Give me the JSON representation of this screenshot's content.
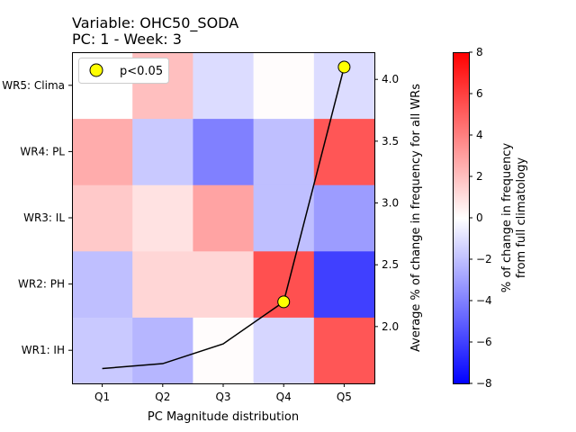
{
  "chart_data": {
    "type": "heatmap",
    "title_line1": "Variable: OHC50_SODA",
    "title_line2": "PC: 1 - Week: 3",
    "xlabel": "PC Magnitude distribution",
    "ylabel_right": "Average % of change in frequency for all WRs",
    "colorbar_label_line1": "% of change in frequency",
    "colorbar_label_line2": "from full climatology",
    "x_categories": [
      "Q1",
      "Q2",
      "Q3",
      "Q4",
      "Q5"
    ],
    "y_categories": [
      "WR1: IH",
      "WR2: PH",
      "WR3: IL",
      "WR4: PL",
      "WR5: Clima"
    ],
    "values": [
      [
        -1.7,
        -2.3,
        0.1,
        -1.3,
        5.3
      ],
      [
        -2.0,
        1.3,
        1.3,
        5.5,
        -6.0
      ],
      [
        1.7,
        0.9,
        2.9,
        -2.0,
        -3.1
      ],
      [
        2.6,
        -1.7,
        -4.0,
        -2.0,
        5.3
      ],
      [
        0.0,
        2.0,
        -1.1,
        0.1,
        -1.1
      ]
    ],
    "color_range": [
      -8,
      8
    ],
    "colorbar_ticks": [
      -8,
      -6,
      -4,
      -2,
      0,
      2,
      4,
      6,
      8
    ],
    "colormap": [
      "#0000ff",
      "#ffffff",
      "#ff0000"
    ],
    "line": {
      "x": [
        "Q1",
        "Q2",
        "Q3",
        "Q4",
        "Q5"
      ],
      "y": [
        1.66,
        1.7,
        1.86,
        2.2,
        4.1
      ],
      "color": "#000000"
    },
    "right_axis_range": [
      1.54,
      4.22
    ],
    "right_axis_ticks": [
      "2.0",
      "2.5",
      "3.0",
      "3.5",
      "4.0"
    ],
    "significant_points": {
      "x": [
        "Q4",
        "Q5"
      ],
      "y": [
        2.2,
        4.1
      ],
      "color": "#ffff00"
    },
    "legend": {
      "label": "p<0.05",
      "position": "top-left"
    }
  }
}
